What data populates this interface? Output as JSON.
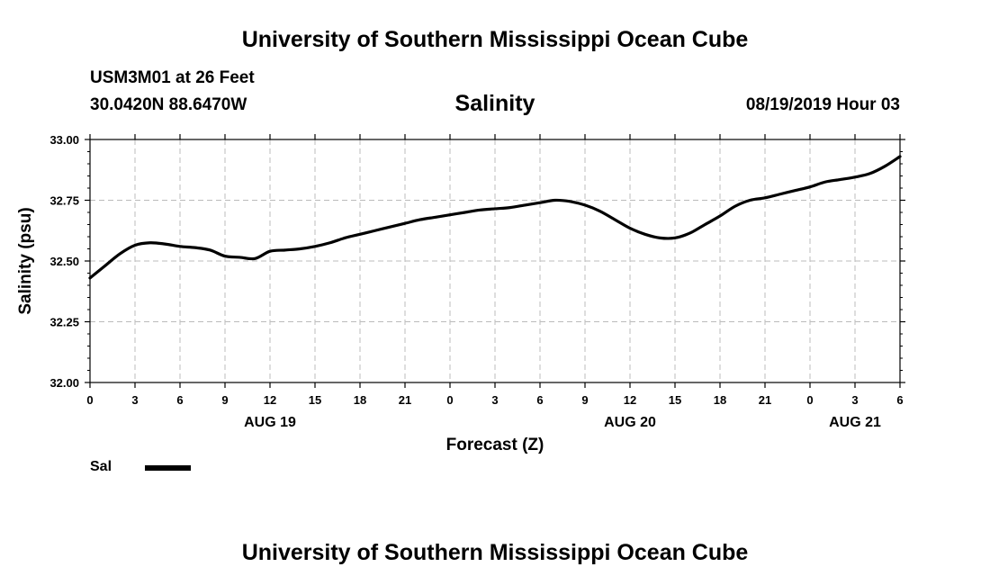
{
  "header": {
    "title": "University of Southern Mississippi Ocean Cube",
    "station": "USM3M01 at 26 Feet",
    "coordinates": "30.0420N 88.6470W",
    "variable": "Salinity",
    "datetime": "08/19/2019 Hour 03"
  },
  "footer": {
    "title": "University of Southern Mississippi Ocean Cube"
  },
  "legend": {
    "label": "Sal",
    "color": "#000000"
  },
  "chart_data": {
    "type": "line",
    "title": "Salinity",
    "xlabel": "Forecast (Z)",
    "ylabel": "Salinity (psu)",
    "ylim": [
      32.0,
      33.0
    ],
    "yticks": [
      "32.00",
      "32.25",
      "32.50",
      "32.75",
      "33.00"
    ],
    "xlim": [
      0,
      54
    ],
    "xtick_hours": [
      0,
      3,
      6,
      9,
      12,
      15,
      18,
      21,
      24,
      27,
      30,
      33,
      36,
      39,
      42,
      45,
      48,
      51,
      54
    ],
    "xtick_labels": [
      "0",
      "3",
      "6",
      "9",
      "12",
      "15",
      "18",
      "21",
      "0",
      "3",
      "6",
      "9",
      "12",
      "15",
      "18",
      "21",
      "0",
      "3",
      "6"
    ],
    "day_labels": [
      {
        "hour": 12,
        "label": "AUG 19"
      },
      {
        "hour": 36,
        "label": "AUG 20"
      },
      {
        "hour": 51,
        "label": "AUG 21"
      }
    ],
    "grid": true,
    "series": [
      {
        "name": "Sal",
        "x": [
          0,
          1,
          2,
          3,
          4,
          5,
          6,
          7,
          8,
          9,
          10,
          11,
          12,
          13,
          14,
          15,
          16,
          17,
          18,
          19,
          20,
          21,
          22,
          23,
          24,
          25,
          26,
          27,
          28,
          29,
          30,
          31,
          32,
          33,
          34,
          35,
          36,
          37,
          38,
          39,
          40,
          41,
          42,
          43,
          44,
          45,
          46,
          47,
          48,
          49,
          50,
          51,
          52,
          53,
          54
        ],
        "values": [
          32.43,
          32.48,
          32.53,
          32.565,
          32.575,
          32.57,
          32.56,
          32.555,
          32.545,
          32.52,
          32.515,
          32.51,
          32.54,
          32.545,
          32.55,
          32.56,
          32.575,
          32.595,
          32.61,
          32.625,
          32.64,
          32.655,
          32.67,
          32.68,
          32.69,
          32.7,
          32.71,
          32.715,
          32.72,
          32.73,
          32.74,
          32.75,
          32.745,
          32.73,
          32.705,
          32.67,
          32.635,
          32.61,
          32.595,
          32.595,
          32.615,
          32.65,
          32.685,
          32.725,
          32.75,
          32.76,
          32.775,
          32.79,
          32.805,
          32.825,
          32.835,
          32.845,
          32.86,
          32.89,
          32.93
        ]
      }
    ]
  }
}
